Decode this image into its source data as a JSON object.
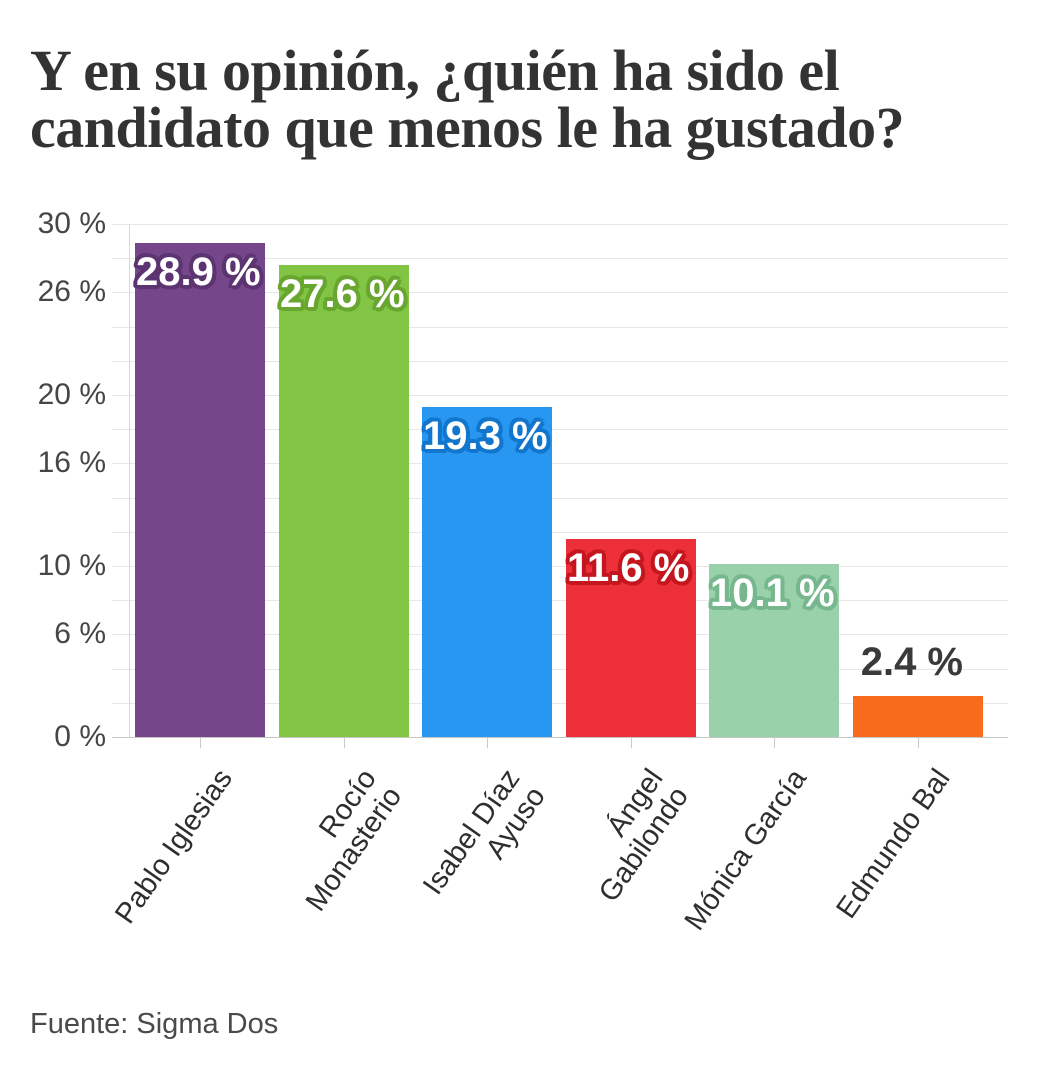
{
  "title": "Y en su opinión, ¿quién ha sido el\ncandidato que menos le ha gustado?",
  "source": "Fuente: Sigma Dos",
  "colors": {
    "background": "#ffffff",
    "title_text": "#333333",
    "axis_text": "#464646",
    "category_text": "#2e2e2e",
    "gridline": "#e7e7e7",
    "baseline": "#c6c6c6",
    "axis_line": "#d8d8d8",
    "value_label_inside": "#ffffff",
    "value_label_outside": "#3a3a3a"
  },
  "chart_data": {
    "type": "bar",
    "title": "Y en su opinión, ¿quién ha sido el candidato que menos le ha gustado?",
    "xlabel": "",
    "ylabel": "",
    "ylim": [
      0,
      30
    ],
    "grid": true,
    "gridline_step_pct": 2,
    "legend": false,
    "source": "Fuente: Sigma Dos",
    "categories": [
      "Pablo Iglesias",
      "Rocío Monasterio",
      "Isabel Díaz Ayuso",
      "Ángel Gabilondo",
      "Mónica García",
      "Edmundo Bal"
    ],
    "values": [
      28.9,
      27.6,
      19.3,
      11.6,
      10.1,
      2.4
    ],
    "value_labels": [
      "28.9 %",
      "27.6 %",
      "19.3 %",
      "11.6 %",
      "10.1 %",
      "2.4 %"
    ],
    "value_label_placement": [
      "inside",
      "inside",
      "inside",
      "inside",
      "inside",
      "outside"
    ],
    "bar_colors": [
      "#75478A",
      "#82C443",
      "#2797F2",
      "#EC2F38",
      "#99D1AB",
      "#F96B1C"
    ],
    "value_label_halo_colors": [
      "#5C3471",
      "#68A62F",
      "#1176CC",
      "#C4161F",
      "#77B78E",
      "none"
    ],
    "x_tick_labels": [
      "Pablo Iglesias",
      "Rocío\nMonasterio",
      "Isabel Díaz\nAyuso",
      "Ángel\nGabilondo",
      "Mónica García",
      "Edmundo Bal"
    ],
    "y_ticks": [
      {
        "value": 0,
        "label": "0 %"
      },
      {
        "value": 6,
        "label": "6 %"
      },
      {
        "value": 10,
        "label": "10 %"
      },
      {
        "value": 16,
        "label": "16 %"
      },
      {
        "value": 20,
        "label": "20 %"
      },
      {
        "value": 26,
        "label": "26 %"
      },
      {
        "value": 30,
        "label": "30 %"
      }
    ]
  }
}
